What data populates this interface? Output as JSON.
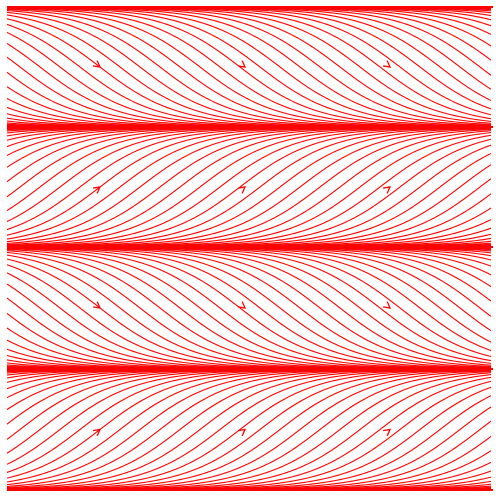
{
  "chart_data": {
    "type": "stream",
    "color": "#ff0000"
  }
}
